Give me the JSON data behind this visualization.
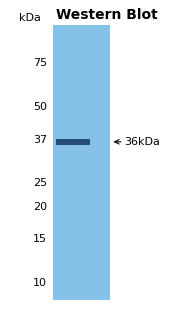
{
  "title": "Western Blot",
  "title_fontsize": 10,
  "background_color": "#ffffff",
  "gel_color": "#85c1e8",
  "band_color": "#1c3f6e",
  "kda_labels": [
    "75",
    "50",
    "37",
    "25",
    "20",
    "15",
    "10"
  ],
  "kda_values": [
    75,
    50,
    37,
    25,
    20,
    15,
    10
  ],
  "band_kda": 36,
  "band_label": "← 36kDa",
  "ylabel": "kDa",
  "fig_width": 1.9,
  "fig_height": 3.09,
  "dpi": 100,
  "ymin": 8.5,
  "ymax": 105,
  "label_fontsize": 8,
  "band_label_fontsize": 8
}
